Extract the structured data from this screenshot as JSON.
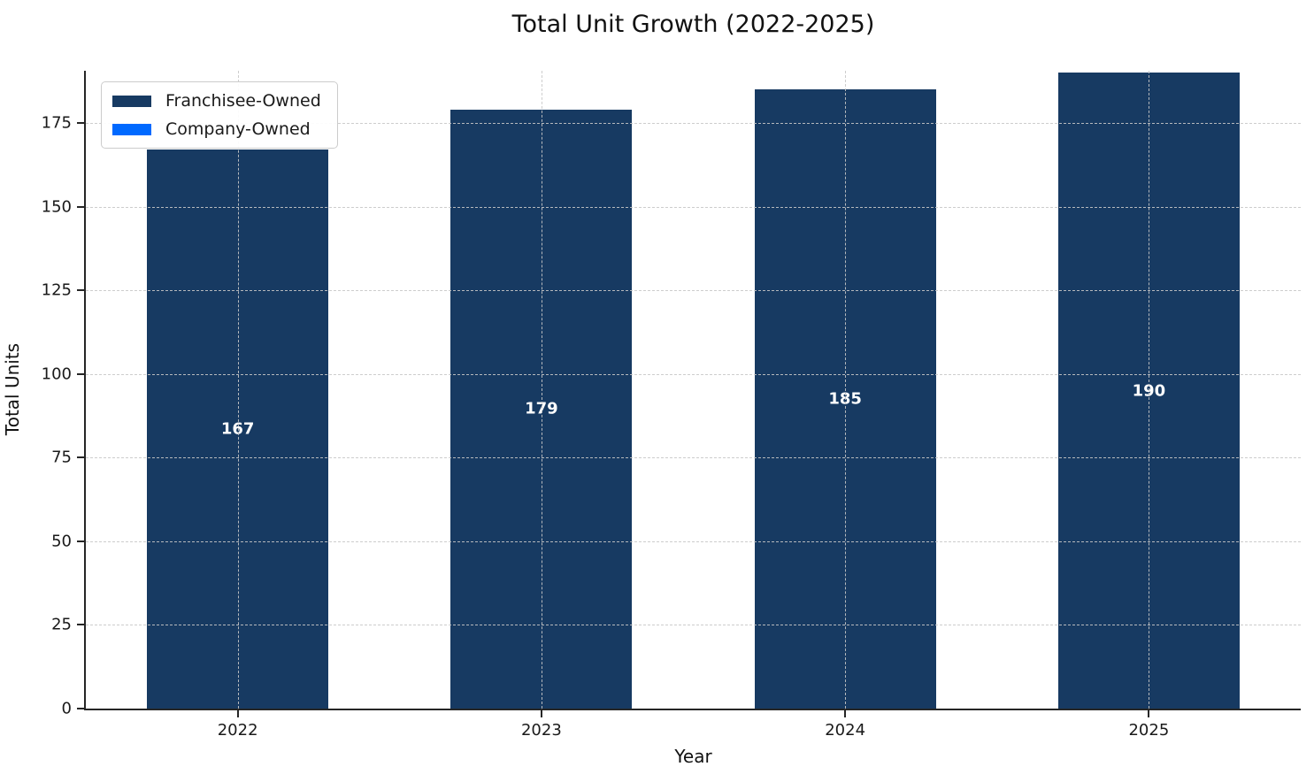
{
  "title": "Total Unit Growth (2022-2025)",
  "colors": {
    "franchisee": "#173A62",
    "company": "#0069FF",
    "grid": "#d9d9d9",
    "spine": "#262626",
    "bar_label": "#ffffff"
  },
  "chart_data": {
    "type": "bar",
    "stacked": true,
    "title": "Total Unit Growth (2022-2025)",
    "xlabel": "Year",
    "ylabel": "Total Units",
    "categories": [
      "2022",
      "2023",
      "2024",
      "2025"
    ],
    "series": [
      {
        "name": "Franchisee-Owned",
        "color": "#173A62",
        "values": [
          167,
          179,
          185,
          190
        ]
      },
      {
        "name": "Company-Owned",
        "color": "#0069FF",
        "values": [
          0,
          0,
          0,
          0
        ]
      }
    ],
    "totals": [
      167,
      179,
      185,
      190
    ],
    "bar_labels": [
      "167",
      "179",
      "185",
      "190"
    ],
    "yticks": [
      0,
      25,
      50,
      75,
      100,
      125,
      150,
      175
    ],
    "ylim": [
      0,
      190.6
    ],
    "grid": true,
    "grid_style": "dashed",
    "legend_position": "upper-left",
    "bar_label_position": "center"
  }
}
